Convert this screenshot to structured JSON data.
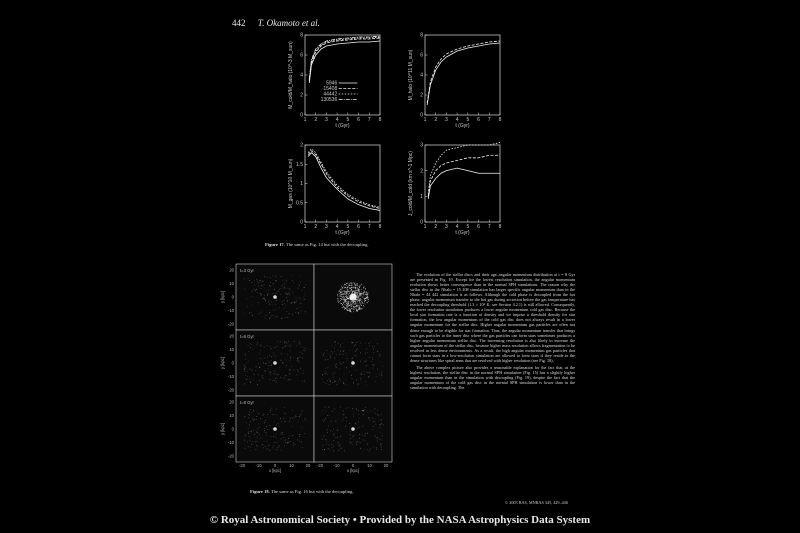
{
  "header": {
    "page_number": "442",
    "author": "T. Okamoto et al."
  },
  "figure17": {
    "caption_label": "Figure 17.",
    "caption_text": "The same as Fig. 14 but with the decoupling.",
    "chart_data": [
      {
        "type": "line",
        "xlabel": "t (Gyr)",
        "ylabel": "M_cold/M_halo (10^-3 M_sun)",
        "xlim": [
          1,
          8
        ],
        "ylim": [
          0,
          8
        ],
        "xticks": [
          1,
          2,
          3,
          4,
          5,
          6,
          7,
          8
        ],
        "yticks": [
          0,
          2,
          4,
          6,
          8
        ],
        "legend": [
          "5946",
          "15408",
          "44442",
          "130536"
        ],
        "series": [
          {
            "name": "5946",
            "dash": "",
            "x": [
              1.4,
              1.6,
              2,
              2.5,
              3,
              4,
              5,
              6,
              7,
              8
            ],
            "y": [
              3.2,
              5.0,
              6.0,
              6.6,
              6.9,
              7.1,
              7.2,
              7.3,
              7.3,
              7.4
            ]
          },
          {
            "name": "15408",
            "dash": "3,1.5",
            "x": [
              1.4,
              1.6,
              2,
              2.5,
              3,
              4,
              5,
              6,
              7,
              8
            ],
            "y": [
              3.4,
              5.2,
              6.3,
              6.9,
              7.2,
              7.4,
              7.5,
              7.6,
              7.6,
              7.7
            ]
          },
          {
            "name": "44442",
            "dash": "1.5,1.5",
            "x": [
              1.4,
              1.6,
              2,
              2.5,
              3,
              4,
              5,
              6,
              7,
              8
            ],
            "y": [
              3.5,
              5.4,
              6.4,
              7.0,
              7.3,
              7.5,
              7.6,
              7.7,
              7.7,
              7.8
            ]
          },
          {
            "name": "130536",
            "dash": "4,1,1,1",
            "x": [
              1.4,
              1.6,
              2,
              2.5,
              3,
              4,
              5,
              6,
              7,
              8
            ],
            "y": [
              3.6,
              5.5,
              6.6,
              7.1,
              7.4,
              7.6,
              7.7,
              7.8,
              7.8,
              7.9
            ]
          }
        ]
      },
      {
        "type": "line",
        "xlabel": "t (Gyr)",
        "ylabel": "M_halo (10^11 M_sun)",
        "xlim": [
          1,
          8
        ],
        "ylim": [
          0,
          8
        ],
        "xticks": [
          1,
          2,
          3,
          4,
          5,
          6,
          7,
          8
        ],
        "yticks": [
          0,
          2,
          4,
          6,
          8
        ],
        "series": [
          {
            "name": "5946",
            "dash": "",
            "x": [
              1.2,
              1.5,
              2,
              2.5,
              3,
              4,
              5,
              6,
              7,
              8
            ],
            "y": [
              1.0,
              3.0,
              4.5,
              5.3,
              5.8,
              6.4,
              6.7,
              6.9,
              7.1,
              7.2
            ]
          },
          {
            "name": "130536",
            "dash": "3,1.5",
            "x": [
              1.2,
              1.5,
              2,
              2.5,
              3,
              4,
              5,
              6,
              7,
              8
            ],
            "y": [
              1.2,
              3.3,
              4.8,
              5.6,
              6.1,
              6.6,
              6.9,
              7.1,
              7.3,
              7.4
            ]
          }
        ]
      },
      {
        "type": "line",
        "xlabel": "t (Gyr)",
        "ylabel": "M_gas (10^10 M_sun)",
        "xlim": [
          1,
          8
        ],
        "ylim": [
          0,
          2.0
        ],
        "xticks": [
          1,
          2,
          3,
          4,
          5,
          6,
          7,
          8
        ],
        "yticks": [
          0,
          0.5,
          1.0,
          1.5,
          2.0
        ],
        "series": [
          {
            "name": "5946",
            "dash": "",
            "x": [
              1.3,
              1.6,
              2,
              2.5,
              3,
              4,
              5,
              6,
              7,
              8
            ],
            "y": [
              1.7,
              1.8,
              1.7,
              1.4,
              1.15,
              0.85,
              0.6,
              0.45,
              0.35,
              0.3
            ]
          },
          {
            "name": "15408",
            "dash": "3,1.5",
            "x": [
              1.3,
              1.6,
              2,
              2.5,
              3,
              4,
              5,
              6,
              7,
              8
            ],
            "y": [
              1.75,
              1.85,
              1.75,
              1.5,
              1.25,
              0.9,
              0.68,
              0.52,
              0.42,
              0.35
            ]
          },
          {
            "name": "44442",
            "dash": "1.5,1.5",
            "x": [
              1.3,
              1.6,
              2,
              2.5,
              3,
              4,
              5,
              6,
              7,
              8
            ],
            "y": [
              1.8,
              1.9,
              1.8,
              1.55,
              1.3,
              0.95,
              0.72,
              0.56,
              0.45,
              0.38
            ]
          }
        ]
      },
      {
        "type": "line",
        "xlabel": "t (Gyr)",
        "ylabel": "J_cold/M_cold (km s^-1 Mpc)",
        "xlim": [
          1,
          8
        ],
        "ylim": [
          0,
          3
        ],
        "xticks": [
          1,
          2,
          3,
          4,
          5,
          6,
          7,
          8
        ],
        "yticks": [
          0,
          1,
          2,
          3
        ],
        "series": [
          {
            "name": "5946",
            "dash": "",
            "x": [
              1.3,
              1.5,
              2,
              2.5,
              3,
              4,
              5,
              6,
              7,
              8
            ],
            "y": [
              0.9,
              1.4,
              1.7,
              1.9,
              2.0,
              2.1,
              2.0,
              1.9,
              1.9,
              1.9
            ]
          },
          {
            "name": "15408",
            "dash": "3,1.5",
            "x": [
              1.3,
              1.5,
              2,
              2.5,
              3,
              4,
              5,
              6,
              7,
              8
            ],
            "y": [
              1.0,
              1.6,
              2.0,
              2.2,
              2.3,
              2.4,
              2.5,
              2.5,
              2.6,
              2.6
            ]
          },
          {
            "name": "44442",
            "dash": "1.5,1.5",
            "x": [
              1.3,
              1.5,
              2,
              2.5,
              3,
              4,
              5,
              6,
              7,
              8
            ],
            "y": [
              1.1,
              1.8,
              2.3,
              2.6,
              2.8,
              2.9,
              3.0,
              3.0,
              3.0,
              3.1
            ]
          }
        ]
      }
    ]
  },
  "figure18": {
    "caption_label": "Figure 18.",
    "caption_text": "The same as Fig. 16 but with the decoupling.",
    "rows": [
      {
        "label": "t=3 Gyr"
      },
      {
        "label": "t=6 Gyr"
      },
      {
        "label": "t=8 Gyr"
      }
    ],
    "xlabel": "x [kpc]",
    "ylabel": "y [kpc]",
    "xticks": [
      "-20",
      "-10",
      "0",
      "10",
      "20"
    ],
    "yticks": [
      "20",
      "10",
      "0",
      "-10",
      "-20"
    ]
  },
  "body_paragraphs": [
    "The evolution of the stellar discs and their age–angular momentum distribution at t = 8 Gyr are presented in Fig. 19. Except for the lowest resolution simulation, the angular momentum evolution shows better convergence than in the normal SPH simulations. The reason why the stellar disc in the Nhalo = 15 408 simulation has larger specific angular momentum than in the Nhalo = 44 442 simulation is as follows. Although the cold phase is decoupled from the hot phase, angular momentum transfer to the hot gas during accretion before the gas temperature has reached the decoupling threshold (1.3 × 10⁴ K; see Section 4.2.1) is still allowed. Consequently, the lower resolution simulation produces a lower angular momentum cold gas disc. Because the local star formation rate is a function of density and we impose a threshold density for star formation, the low angular momentum of the cold gas disc does not always result in a lower angular momentum for the stellar disc. Higher angular momentum gas particles are often not dense enough to be eligible for star formation. Thus, the angular momentum transfer that brings such gas particles to the inner disc where the gas particles can form stars sometimes produces a higher angular momentum stellar disc. The increasing resolution is also likely to increase the angular momentum of the stellar disc, because higher mass resolution allows fragmentation to be resolved in less dense environments. As a result, the high angular momentum gas particles that cannot form stars in a low-resolution simulation are allowed to form stars if they reside in the dense structures like spiral arms that are resolved with higher resolution (see Fig. 18).",
    "The above complex picture also provides a reasonable explanation for the fact that, at the highest resolution, the stellar disc in the normal SPH simulation (Fig. 15) has a slightly higher angular momentum than in the simulation with decoupling (Fig. 19), despite the fact that the angular momentum of the cold gas disc in the normal SPH simulation is lower than in the simulation with decoupling. The"
  ],
  "journal_ref": "© 2003 RAS, MNRAS 345, 429–446",
  "footer": "© Royal Astronomical Society • Provided by the NASA Astrophysics Data System"
}
